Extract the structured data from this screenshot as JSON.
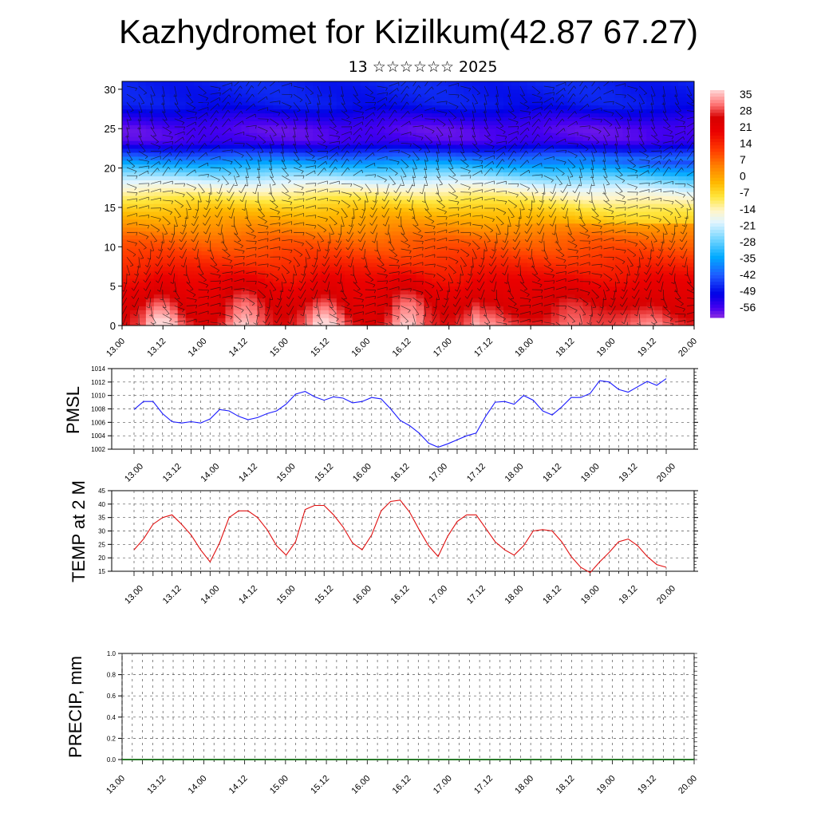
{
  "title": "Kazhydromet for Kizilkum(42.87 67.27)",
  "subtitle": "13 ☆☆☆☆☆☆ 2025",
  "colors": {
    "pmsl_line": "#1a1aff",
    "temp_line": "#e01010",
    "precip_axis": "#2a7a2a",
    "grid": "#555555"
  },
  "chart_data": [
    {
      "type": "heatmap",
      "name": "upper-air-temperature-wind",
      "title": "",
      "xlabel": "",
      "ylabel": "",
      "x_tick_labels": [
        "13.00",
        "13.12",
        "14.00",
        "14.12",
        "15.00",
        "15.12",
        "16.00",
        "16.12",
        "17.00",
        "17.12",
        "18.00",
        "18.12",
        "19.00",
        "19.12",
        "20.00"
      ],
      "y_ticks": [
        0,
        5,
        10,
        15,
        20,
        25,
        30
      ],
      "ylim": [
        0,
        31
      ],
      "colorbar": {
        "labels": [
          "35",
          "28",
          "21",
          "14",
          "7",
          "0",
          "-7",
          "-14",
          "-21",
          "-28",
          "-35",
          "-42",
          "-49",
          "-56"
        ],
        "min": -60,
        "max": 38
      },
      "vertical_profile": [
        {
          "h": 0,
          "t": 30
        },
        {
          "h": 3,
          "t": 25
        },
        {
          "h": 6,
          "t": 19
        },
        {
          "h": 9,
          "t": 12
        },
        {
          "h": 11,
          "t": 8
        },
        {
          "h": 13,
          "t": 2
        },
        {
          "h": 15,
          "t": -4
        },
        {
          "h": 16.5,
          "t": -10
        },
        {
          "h": 18,
          "t": -18
        },
        {
          "h": 20,
          "t": -30
        },
        {
          "h": 22,
          "t": -45
        },
        {
          "h": 23.5,
          "t": -56
        },
        {
          "h": 25,
          "t": -57
        },
        {
          "h": 26.5,
          "t": -53
        },
        {
          "h": 28,
          "t": -48
        },
        {
          "h": 31,
          "t": -47
        }
      ],
      "wind": "barbs"
    },
    {
      "type": "line",
      "name": "pmsl",
      "ylabel": "PMSL",
      "ylim": [
        1002,
        1014
      ],
      "y_ticks": [
        1002,
        1004,
        1006,
        1008,
        1010,
        1012,
        1014
      ],
      "x_tick_labels": [
        "13.00",
        "13.12",
        "14.00",
        "14.12",
        "15.00",
        "15.12",
        "16.00",
        "16.12",
        "17.00",
        "17.12",
        "18.00",
        "18.12",
        "19.00",
        "19.12",
        "20.00"
      ],
      "values": [
        1007.9,
        1009.1,
        1009.1,
        1007.3,
        1006.1,
        1005.9,
        1006.1,
        1005.9,
        1006.5,
        1007.9,
        1007.7,
        1006.9,
        1006.4,
        1006.7,
        1007.3,
        1007.7,
        1008.7,
        1010.2,
        1010.6,
        1009.8,
        1009.3,
        1009.8,
        1009.6,
        1008.9,
        1009.1,
        1009.7,
        1009.5,
        1008.0,
        1006.3,
        1005.5,
        1004.4,
        1002.9,
        1002.3,
        1002.8,
        1003.4,
        1004.0,
        1004.4,
        1006.9,
        1009.0,
        1009.1,
        1008.7,
        1010.0,
        1009.3,
        1007.7,
        1007.1,
        1008.3,
        1009.7,
        1009.7,
        1010.3,
        1012.2,
        1012.0,
        1010.9,
        1010.5,
        1011.3,
        1012.1,
        1011.5,
        1012.5
      ]
    },
    {
      "type": "line",
      "name": "temp-2m",
      "ylabel": "TEMP at 2 M",
      "ylim": [
        15,
        45
      ],
      "y_ticks": [
        15,
        20,
        25,
        30,
        35,
        40,
        45
      ],
      "x_tick_labels": [
        "13.00",
        "13.12",
        "14.00",
        "14.12",
        "15.00",
        "15.12",
        "16.00",
        "16.12",
        "17.00",
        "17.12",
        "18.00",
        "18.12",
        "19.00",
        "19.12",
        "20.00"
      ],
      "values": [
        23.0,
        27.0,
        32.5,
        35.0,
        36.0,
        32.5,
        28.5,
        23.0,
        18.5,
        25.5,
        35.0,
        37.5,
        37.5,
        35.0,
        30.5,
        24.5,
        21.0,
        26.0,
        38.0,
        39.5,
        39.5,
        36.0,
        31.5,
        25.5,
        23.0,
        28.5,
        37.5,
        41.0,
        41.5,
        37.0,
        30.5,
        24.5,
        20.5,
        28.0,
        33.5,
        36.0,
        36.0,
        31.0,
        26.0,
        23.0,
        21.0,
        24.5,
        30.0,
        30.5,
        30.0,
        26.0,
        20.5,
        16.5,
        14.5,
        18.5,
        22.0,
        26.0,
        27.0,
        24.5,
        20.5,
        17.5,
        16.5
      ]
    },
    {
      "type": "bar",
      "name": "precip",
      "ylabel": "PRECIP, mm",
      "ylim": [
        0,
        1
      ],
      "y_tick_labels": [
        "0.0",
        "0.2",
        "0.4",
        "0.6",
        "0.8",
        "1.0"
      ],
      "x_tick_labels": [
        "13.00",
        "13.12",
        "14.00",
        "14.12",
        "15.00",
        "15.12",
        "16.00",
        "16.12",
        "17.00",
        "17.12",
        "18.00",
        "18.12",
        "19.00",
        "19.12",
        "20.00"
      ],
      "values": []
    }
  ]
}
